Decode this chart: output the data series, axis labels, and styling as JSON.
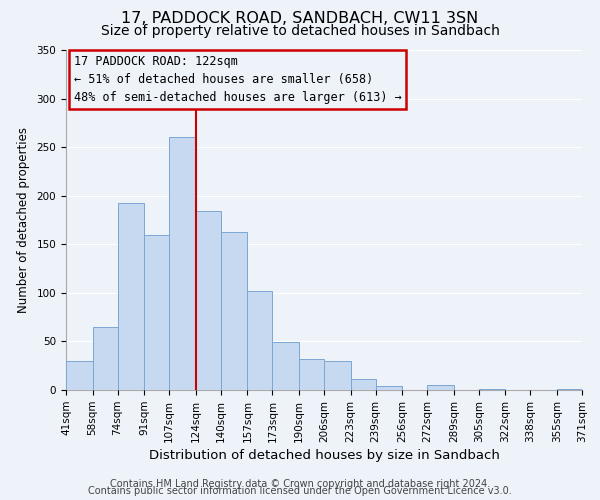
{
  "title": "17, PADDOCK ROAD, SANDBACH, CW11 3SN",
  "subtitle": "Size of property relative to detached houses in Sandbach",
  "xlabel": "Distribution of detached houses by size in Sandbach",
  "ylabel": "Number of detached properties",
  "bar_edges": [
    41,
    58,
    74,
    91,
    107,
    124,
    140,
    157,
    173,
    190,
    206,
    223,
    239,
    256,
    272,
    289,
    305,
    322,
    338,
    355,
    371
  ],
  "bar_heights": [
    30,
    65,
    193,
    160,
    260,
    184,
    163,
    102,
    49,
    32,
    30,
    11,
    4,
    0,
    5,
    0,
    1,
    0,
    0,
    1
  ],
  "tick_labels": [
    "41sqm",
    "58sqm",
    "74sqm",
    "91sqm",
    "107sqm",
    "124sqm",
    "140sqm",
    "157sqm",
    "173sqm",
    "190sqm",
    "206sqm",
    "223sqm",
    "239sqm",
    "256sqm",
    "272sqm",
    "289sqm",
    "305sqm",
    "322sqm",
    "338sqm",
    "355sqm",
    "371sqm"
  ],
  "bar_color": "#c6d9f0",
  "bar_edge_color": "#7ba7d4",
  "vline_x": 124,
  "vline_color": "#cc0000",
  "annotation_title": "17 PADDOCK ROAD: 122sqm",
  "annotation_line1": "← 51% of detached houses are smaller (658)",
  "annotation_line2": "48% of semi-detached houses are larger (613) →",
  "annotation_box_edge": "#cc0000",
  "ylim": [
    0,
    350
  ],
  "footer1": "Contains HM Land Registry data © Crown copyright and database right 2024.",
  "footer2": "Contains public sector information licensed under the Open Government Licence v3.0.",
  "background_color": "#eef2f9",
  "title_fontsize": 11.5,
  "subtitle_fontsize": 10,
  "xlabel_fontsize": 9.5,
  "ylabel_fontsize": 8.5,
  "tick_fontsize": 7.5,
  "footer_fontsize": 7,
  "annotation_fontsize": 8.5
}
